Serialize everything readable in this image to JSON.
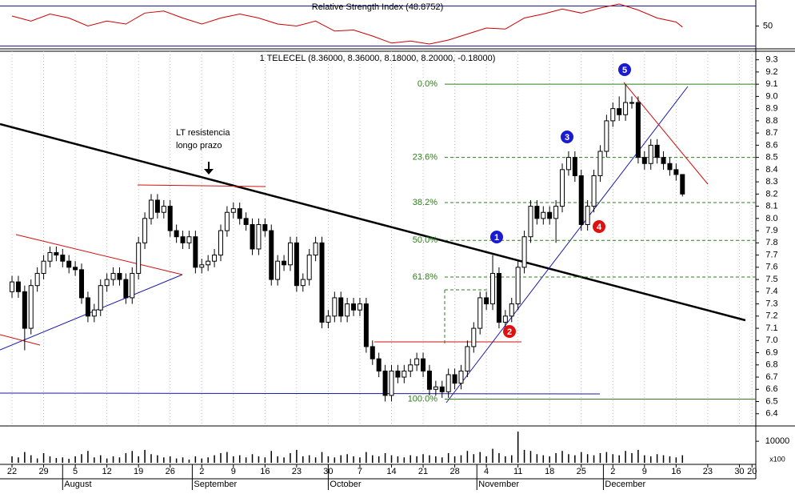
{
  "chart_data": [
    {
      "type": "rsi",
      "title": "Relative Strength Index (48.8752)",
      "color": "#cc0000",
      "level_color": "#1a1a9a",
      "x": [
        0,
        3,
        6,
        9,
        12,
        15,
        18,
        21,
        24,
        27,
        30,
        33,
        36,
        39,
        42,
        45,
        48,
        51,
        54,
        57,
        60,
        63,
        66,
        69,
        72,
        75,
        78,
        81,
        84,
        87,
        90,
        93,
        96,
        99,
        102,
        105,
        106
      ],
      "values": [
        60,
        55,
        62,
        58,
        50,
        55,
        52,
        63,
        65,
        58,
        52,
        58,
        62,
        58,
        52,
        50,
        55,
        45,
        46,
        40,
        33,
        35,
        32,
        36,
        42,
        48,
        47,
        58,
        62,
        67,
        63,
        68,
        72,
        66,
        58,
        54,
        49
      ],
      "ylim": [
        28,
        76
      ],
      "yticks": [
        50
      ],
      "levels": [
        30,
        70
      ]
    },
    {
      "type": "candlestick",
      "title": "1 TELECEL (8.36000, 8.36000, 8.18000, 8.20000, -0.18000)",
      "up_color": "#ffffff",
      "down_color": "#000000",
      "grid": true,
      "ohlc": [
        [
          7.4,
          7.53,
          7.35,
          7.48
        ],
        [
          7.48,
          7.53,
          7.35,
          7.4
        ],
        [
          7.4,
          7.45,
          6.92,
          7.1
        ],
        [
          7.1,
          7.5,
          7.05,
          7.45
        ],
        [
          7.45,
          7.6,
          7.4,
          7.55
        ],
        [
          7.55,
          7.7,
          7.5,
          7.65
        ],
        [
          7.65,
          7.77,
          7.6,
          7.72
        ],
        [
          7.72,
          7.77,
          7.65,
          7.7
        ],
        [
          7.7,
          7.75,
          7.6,
          7.65
        ],
        [
          7.65,
          7.7,
          7.55,
          7.6
        ],
        [
          7.6,
          7.65,
          7.53,
          7.58
        ],
        [
          7.58,
          7.63,
          7.3,
          7.35
        ],
        [
          7.35,
          7.4,
          7.15,
          7.2
        ],
        [
          7.2,
          7.3,
          7.15,
          7.25
        ],
        [
          7.25,
          7.5,
          7.2,
          7.45
        ],
        [
          7.45,
          7.55,
          7.4,
          7.5
        ],
        [
          7.5,
          7.6,
          7.45,
          7.55
        ],
        [
          7.55,
          7.6,
          7.45,
          7.5
        ],
        [
          7.5,
          7.55,
          7.3,
          7.35
        ],
        [
          7.35,
          7.6,
          7.3,
          7.55
        ],
        [
          7.55,
          7.85,
          7.5,
          7.8
        ],
        [
          7.8,
          8.05,
          7.75,
          8.0
        ],
        [
          8.0,
          8.2,
          7.95,
          8.15
        ],
        [
          8.15,
          8.2,
          8.0,
          8.05
        ],
        [
          8.05,
          8.15,
          8.0,
          8.1
        ],
        [
          8.1,
          8.15,
          7.85,
          7.9
        ],
        [
          7.9,
          7.95,
          7.8,
          7.85
        ],
        [
          7.85,
          7.9,
          7.75,
          7.8
        ],
        [
          7.8,
          7.9,
          7.75,
          7.85
        ],
        [
          7.85,
          7.9,
          7.55,
          7.6
        ],
        [
          7.6,
          7.67,
          7.55,
          7.62
        ],
        [
          7.62,
          7.7,
          7.57,
          7.65
        ],
        [
          7.65,
          7.75,
          7.6,
          7.7
        ],
        [
          7.7,
          7.95,
          7.65,
          7.9
        ],
        [
          7.9,
          8.1,
          7.85,
          8.05
        ],
        [
          8.05,
          8.13,
          8.0,
          8.08
        ],
        [
          8.08,
          8.13,
          7.95,
          8.0
        ],
        [
          8.0,
          8.05,
          7.9,
          7.95
        ],
        [
          7.95,
          8.0,
          7.7,
          7.75
        ],
        [
          7.75,
          8.0,
          7.7,
          7.95
        ],
        [
          7.95,
          8.0,
          7.85,
          7.9
        ],
        [
          7.9,
          7.95,
          7.45,
          7.5
        ],
        [
          7.5,
          7.7,
          7.45,
          7.65
        ],
        [
          7.65,
          7.7,
          7.57,
          7.62
        ],
        [
          7.62,
          7.85,
          7.57,
          7.8
        ],
        [
          7.8,
          7.85,
          7.4,
          7.45
        ],
        [
          7.45,
          7.55,
          7.4,
          7.5
        ],
        [
          7.5,
          7.75,
          7.45,
          7.7
        ],
        [
          7.7,
          7.85,
          7.65,
          7.8
        ],
        [
          7.8,
          7.85,
          7.1,
          7.15
        ],
        [
          7.15,
          7.25,
          7.1,
          7.2
        ],
        [
          7.2,
          7.4,
          7.15,
          7.35
        ],
        [
          7.35,
          7.4,
          7.15,
          7.2
        ],
        [
          7.2,
          7.35,
          7.15,
          7.3
        ],
        [
          7.3,
          7.35,
          7.2,
          7.25
        ],
        [
          7.25,
          7.35,
          7.2,
          7.3
        ],
        [
          7.3,
          7.35,
          6.9,
          6.95
        ],
        [
          6.95,
          7.0,
          6.8,
          6.85
        ],
        [
          6.85,
          6.9,
          6.7,
          6.75
        ],
        [
          6.75,
          6.8,
          6.5,
          6.55
        ],
        [
          6.55,
          6.8,
          6.5,
          6.75
        ],
        [
          6.75,
          6.8,
          6.65,
          6.7
        ],
        [
          6.7,
          6.8,
          6.65,
          6.75
        ],
        [
          6.75,
          6.85,
          6.7,
          6.8
        ],
        [
          6.8,
          6.9,
          6.75,
          6.85
        ],
        [
          6.85,
          6.9,
          6.7,
          6.75
        ],
        [
          6.75,
          6.8,
          6.55,
          6.6
        ],
        [
          6.6,
          6.67,
          6.55,
          6.62
        ],
        [
          6.62,
          6.67,
          6.53,
          6.58
        ],
        [
          6.58,
          6.77,
          6.53,
          6.72
        ],
        [
          6.72,
          6.77,
          6.6,
          6.65
        ],
        [
          6.65,
          6.8,
          6.6,
          6.75
        ],
        [
          6.75,
          7.0,
          6.7,
          6.95
        ],
        [
          6.95,
          7.15,
          6.9,
          7.1
        ],
        [
          7.1,
          7.4,
          7.05,
          7.35
        ],
        [
          7.35,
          7.4,
          7.25,
          7.3
        ],
        [
          7.3,
          7.7,
          7.25,
          7.55
        ],
        [
          7.55,
          7.6,
          7.1,
          7.15
        ],
        [
          7.15,
          7.25,
          7.1,
          7.2
        ],
        [
          7.2,
          7.35,
          7.15,
          7.3
        ],
        [
          7.3,
          7.65,
          7.25,
          7.6
        ],
        [
          7.6,
          7.9,
          7.55,
          7.85
        ],
        [
          7.85,
          8.15,
          7.8,
          8.1
        ],
        [
          8.1,
          8.15,
          7.95,
          8.0
        ],
        [
          8.0,
          8.1,
          7.95,
          8.05
        ],
        [
          8.05,
          8.1,
          7.95,
          8.0
        ],
        [
          8.0,
          8.15,
          7.8,
          8.1
        ],
        [
          8.1,
          8.45,
          8.05,
          8.4
        ],
        [
          8.4,
          8.55,
          8.35,
          8.5
        ],
        [
          8.5,
          8.55,
          8.3,
          8.35
        ],
        [
          8.35,
          8.4,
          7.9,
          7.95
        ],
        [
          7.95,
          8.15,
          7.9,
          8.1
        ],
        [
          8.1,
          8.4,
          8.05,
          8.35
        ],
        [
          8.35,
          8.6,
          8.3,
          8.55
        ],
        [
          8.55,
          8.85,
          8.5,
          8.8
        ],
        [
          8.8,
          8.95,
          8.75,
          8.9
        ],
        [
          8.9,
          9.0,
          8.8,
          8.85
        ],
        [
          8.85,
          9.1,
          8.8,
          8.95
        ],
        [
          8.95,
          9.0,
          8.9,
          8.95
        ],
        [
          8.95,
          9.0,
          8.45,
          8.5
        ],
        [
          8.5,
          8.55,
          8.4,
          8.45
        ],
        [
          8.45,
          8.65,
          8.4,
          8.6
        ],
        [
          8.6,
          8.65,
          8.45,
          8.5
        ],
        [
          8.5,
          8.55,
          8.4,
          8.45
        ],
        [
          8.45,
          8.5,
          8.35,
          8.4
        ],
        [
          8.4,
          8.45,
          8.31,
          8.36
        ],
        [
          8.36,
          8.36,
          8.18,
          8.2
        ]
      ],
      "xlim": [
        -1.9,
        117.6
      ],
      "ylim": [
        6.3,
        9.37
      ],
      "yticks": [
        6.4,
        6.5,
        6.6,
        6.7,
        6.8,
        6.9,
        {
          "value": 7,
          "label": "7.0"
        },
        7.1,
        7.2,
        7.3,
        7.4,
        7.5,
        7.6,
        7.7,
        7.8,
        7.9,
        {
          "value": 8,
          "label": "8.0"
        },
        8.1,
        8.2,
        8.3,
        8.4,
        8.5,
        8.6,
        8.7,
        8.8,
        8.9,
        {
          "value": 9,
          "label": "9.0"
        },
        9.1,
        9.2,
        9.3
      ],
      "fib_color": "#2e7d1e",
      "fib_levels": [
        {
          "label": "0.0%",
          "value": 9.1
        },
        {
          "label": "23.6%",
          "value": 8.5
        },
        {
          "label": "38.2%",
          "value": 8.13
        },
        {
          "label": "50.0%",
          "value": 7.82
        },
        {
          "label": "61.8%",
          "value": 7.52
        },
        {
          "label": "100.0%",
          "value": 6.52
        }
      ],
      "annotations": [
        "LT resistencia",
        "longo prazo"
      ],
      "wave_labels": [
        "1",
        "2",
        "3",
        "4",
        "5"
      ]
    },
    {
      "type": "volume",
      "color": "#000000",
      "unit_label": "x100",
      "values": [
        3000,
        2500,
        5000,
        3500,
        2000,
        4500,
        3000,
        2200,
        2500,
        1800,
        3000,
        4000,
        5500,
        2500,
        3500,
        2000,
        3000,
        2500,
        4500,
        5500,
        3000,
        6000,
        4000,
        3500,
        2500,
        3000,
        2000,
        2500,
        1500,
        3000,
        2000,
        2500,
        3500,
        4500,
        5000,
        3000,
        3500,
        2500,
        4000,
        3000,
        2500,
        5500,
        3000,
        2500,
        4500,
        6000,
        3000,
        3500,
        2500,
        5000,
        3000,
        2500,
        3500,
        4000,
        3000,
        2500,
        5000,
        3500,
        3000,
        4500,
        3500,
        3000,
        2500,
        3500,
        3000,
        4000,
        3500,
        3000,
        2500,
        4500,
        3000,
        3500,
        5500,
        4000,
        5000,
        3000,
        6500,
        4500,
        3000,
        3500,
        14500,
        6000,
        5500,
        4000,
        3500,
        3000,
        4500,
        5500,
        4000,
        3500,
        5000,
        4000,
        3500,
        4500,
        5000,
        4000,
        3500,
        5500,
        4500,
        6000,
        3500,
        3000,
        4000,
        3500,
        3000,
        2500,
        3500
      ],
      "ylim": [
        0,
        16000
      ],
      "yticks": [
        10000
      ],
      "xticks": [
        {
          "value": 0,
          "label": "22"
        },
        {
          "value": 5,
          "label": "29"
        },
        {
          "value": 10,
          "label": "5"
        },
        {
          "value": 15,
          "label": "12"
        },
        {
          "value": 20,
          "label": "19"
        },
        {
          "value": 25,
          "label": "26"
        },
        {
          "value": 30,
          "label": "2"
        },
        {
          "value": 35,
          "label": "9"
        },
        {
          "value": 40,
          "label": "16"
        },
        {
          "value": 45,
          "label": "23"
        },
        {
          "value": 50,
          "label": "30"
        },
        {
          "value": 55,
          "label": "7"
        },
        {
          "value": 60,
          "label": "14"
        },
        {
          "value": 65,
          "label": "21"
        },
        {
          "value": 70,
          "label": "28"
        },
        {
          "value": 75,
          "label": "4"
        },
        {
          "value": 80,
          "label": "11"
        },
        {
          "value": 85,
          "label": "18"
        },
        {
          "value": 90,
          "label": "25"
        },
        {
          "value": 95,
          "label": "2"
        },
        {
          "value": 100,
          "label": "9"
        },
        {
          "value": 105,
          "label": "16"
        },
        {
          "value": 110,
          "label": "23"
        },
        {
          "value": 115,
          "label": "30"
        },
        {
          "value": 117,
          "label": "20"
        }
      ],
      "months": [
        {
          "value": 8,
          "label": "August"
        },
        {
          "value": 28.5,
          "label": "September"
        },
        {
          "value": 50,
          "label": "October"
        },
        {
          "value": 73.5,
          "label": "November"
        },
        {
          "value": 93.5,
          "label": "December"
        }
      ]
    }
  ]
}
